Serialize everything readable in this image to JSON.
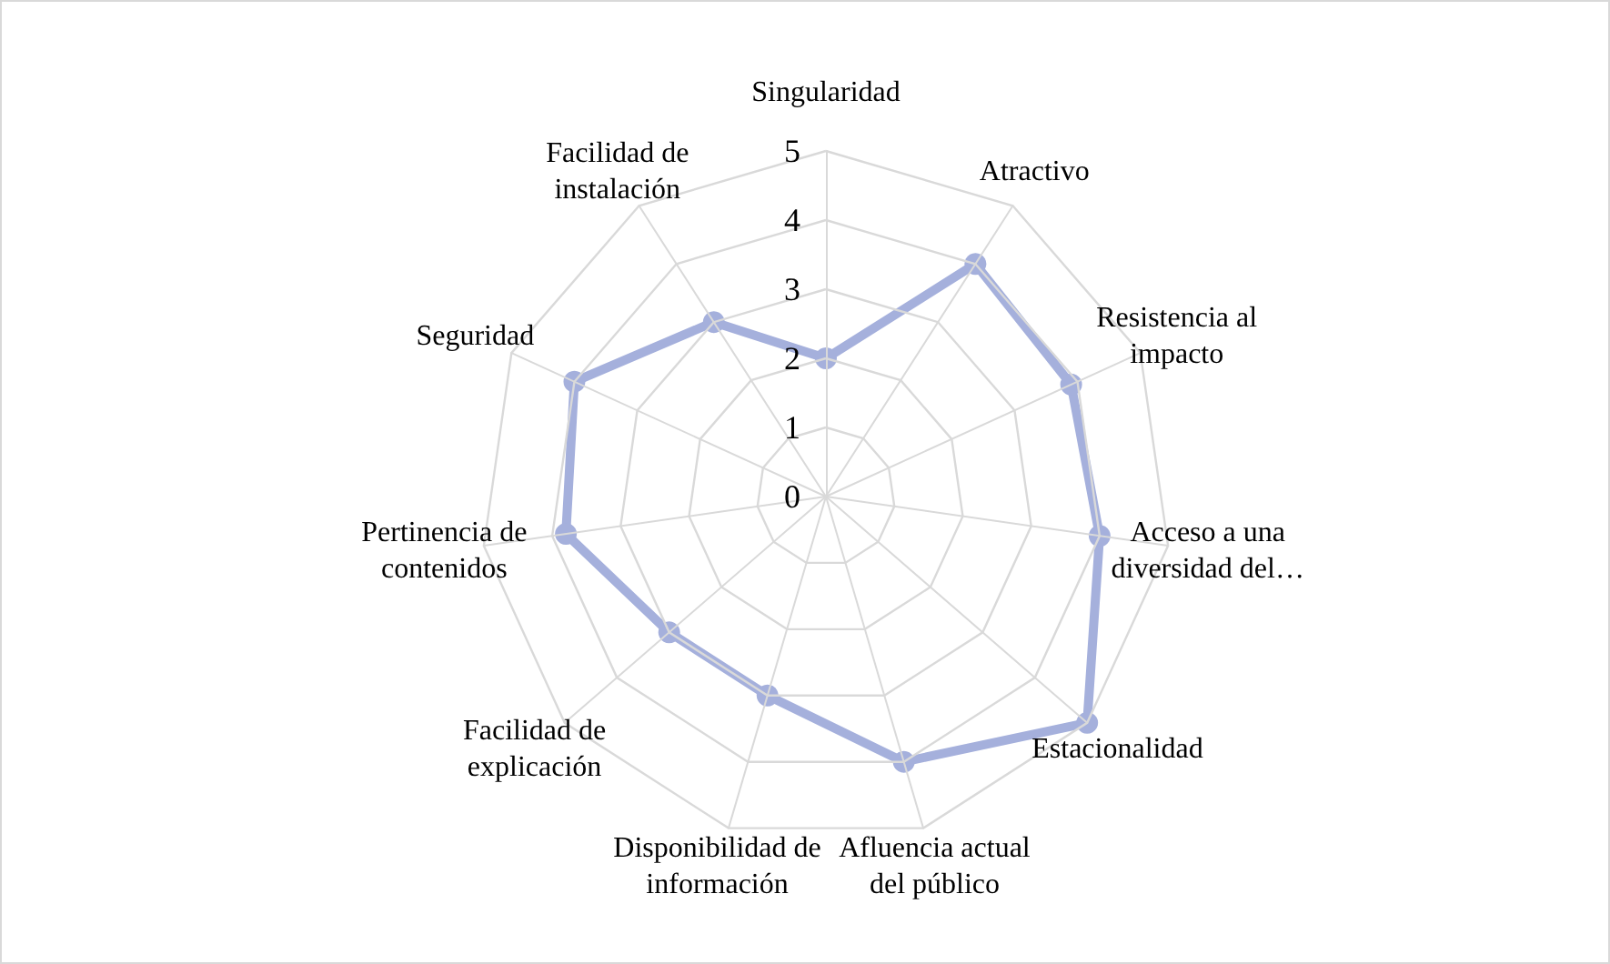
{
  "chart_data": {
    "type": "radar",
    "categories": [
      "Singularidad",
      "Atractivo",
      "Resistencia al impacto",
      "Acceso a una diversidad del…",
      "Estacionalidad",
      "Afluencia actual del público",
      "Disponibilidad de información",
      "Facilidad de explicación",
      "Pertinencia de contenidos",
      "Seguridad",
      "Facilidad de instalación"
    ],
    "series": [
      {
        "color": "#a5b0dc",
        "values": [
          2,
          4,
          3.9,
          4,
          5,
          4,
          3,
          3,
          3.8,
          4,
          3
        ]
      }
    ],
    "ylim": [
      0,
      5
    ],
    "yticks": [
      0,
      1,
      2,
      3,
      4,
      5
    ],
    "marker": "circle"
  }
}
